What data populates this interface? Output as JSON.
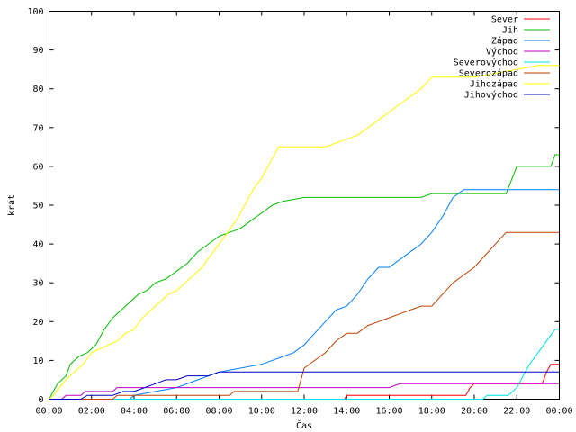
{
  "chart_data": {
    "type": "line",
    "title": "",
    "xlabel": "Čas",
    "ylabel": "krát",
    "xlim": [
      0,
      24
    ],
    "ylim": [
      0,
      100
    ],
    "x_ticks": [
      {
        "value": 0,
        "label": "00:00"
      },
      {
        "value": 2,
        "label": "02:00"
      },
      {
        "value": 4,
        "label": "04:00"
      },
      {
        "value": 6,
        "label": "06:00"
      },
      {
        "value": 8,
        "label": "08:00"
      },
      {
        "value": 10,
        "label": "10:00"
      },
      {
        "value": 12,
        "label": "12:00"
      },
      {
        "value": 14,
        "label": "14:00"
      },
      {
        "value": 16,
        "label": "16:00"
      },
      {
        "value": 18,
        "label": "18:00"
      },
      {
        "value": 20,
        "label": "20:00"
      },
      {
        "value": 22,
        "label": "22:00"
      },
      {
        "value": 24,
        "label": "00:00"
      }
    ],
    "y_ticks": [
      0,
      10,
      20,
      30,
      40,
      50,
      60,
      70,
      80,
      90,
      100
    ],
    "grid": false,
    "legend": "top-right",
    "series": [
      {
        "name": "Sever",
        "color": "#ff0000",
        "x": [
          0,
          13.9,
          14.0,
          19.6,
          19.8,
          20.0,
          23.2,
          23.4,
          23.6,
          24
        ],
        "values": [
          0,
          0,
          1,
          1,
          3,
          4,
          4,
          7,
          9,
          9
        ]
      },
      {
        "name": "Jih",
        "color": "#00c000",
        "x": [
          0,
          0.2,
          0.4,
          0.8,
          1.0,
          1.4,
          1.8,
          2.2,
          2.6,
          3.0,
          3.4,
          3.8,
          4.2,
          4.6,
          5.0,
          5.5,
          6.0,
          6.5,
          7.0,
          7.5,
          8.0,
          8.5,
          9.0,
          9.5,
          10.0,
          10.5,
          11.0,
          12.0,
          14.0,
          16.0,
          17.5,
          18.0,
          19.0,
          20.0,
          21.5,
          22.0,
          23.0,
          23.6,
          23.8,
          24
        ],
        "values": [
          0,
          2,
          4,
          6,
          9,
          11,
          12,
          14,
          18,
          21,
          23,
          25,
          27,
          28,
          30,
          31,
          33,
          35,
          38,
          40,
          42,
          43,
          44,
          46,
          48,
          50,
          51,
          52,
          52,
          52,
          52,
          53,
          53,
          53,
          53,
          60,
          60,
          60,
          63,
          63
        ]
      },
      {
        "name": "Západ",
        "color": "#0080ff",
        "x": [
          0,
          3.8,
          4.0,
          5.0,
          6.0,
          7.0,
          7.5,
          8.0,
          9.0,
          10.0,
          11.0,
          11.5,
          12.0,
          12.5,
          13.0,
          13.5,
          14.0,
          14.5,
          15.0,
          15.5,
          16.0,
          16.5,
          17.0,
          17.5,
          18.0,
          18.5,
          19.0,
          19.5,
          20.0,
          22.0,
          24
        ],
        "values": [
          0,
          0,
          1,
          2,
          3,
          5,
          6,
          7,
          8,
          9,
          11,
          12,
          14,
          17,
          20,
          23,
          24,
          27,
          31,
          34,
          34,
          36,
          38,
          40,
          43,
          47,
          52,
          54,
          54,
          54,
          54
        ]
      },
      {
        "name": "Východ",
        "color": "#c000c0",
        "x": [
          0,
          0.6,
          0.8,
          1.5,
          1.7,
          3.0,
          3.2,
          5.0,
          7.0,
          9.0,
          11.0,
          12.0,
          14.0,
          16.0,
          16.5,
          18.0,
          20.0,
          22.0,
          24
        ],
        "values": [
          0,
          0,
          1,
          1,
          2,
          2,
          3,
          3,
          3,
          3,
          3,
          3,
          3,
          3,
          4,
          4,
          4,
          4,
          4
        ]
      },
      {
        "name": "Severovýchod",
        "color": "#00e0e0",
        "x": [
          0,
          20.4,
          20.6,
          21.4,
          21.6,
          22.0,
          22.3,
          22.6,
          23.0,
          23.4,
          23.8,
          24
        ],
        "values": [
          0,
          0,
          1,
          1,
          1,
          3,
          6,
          9,
          12,
          15,
          18,
          18
        ]
      },
      {
        "name": "Severozápad",
        "color": "#c04000",
        "x": [
          0,
          3.0,
          3.2,
          6.0,
          6.2,
          8.5,
          8.7,
          11.7,
          12.0,
          12.5,
          13.0,
          13.5,
          14.0,
          14.5,
          15.0,
          15.5,
          16.0,
          16.5,
          17.0,
          17.5,
          18.0,
          18.5,
          19.0,
          19.5,
          20.0,
          20.5,
          21.0,
          21.5,
          22.0,
          22.5,
          24
        ],
        "values": [
          0,
          0,
          1,
          1,
          1,
          1,
          2,
          2,
          8,
          10,
          12,
          15,
          17,
          17,
          19,
          20,
          21,
          22,
          23,
          24,
          24,
          27,
          30,
          32,
          34,
          37,
          40,
          43,
          43,
          43,
          43
        ]
      },
      {
        "name": "Jihozápad",
        "color": "#ffff00",
        "x": [
          0,
          0.2,
          0.5,
          0.8,
          1.2,
          1.6,
          2.0,
          2.4,
          2.8,
          3.2,
          3.6,
          4.0,
          4.4,
          4.8,
          5.2,
          5.6,
          6.0,
          6.4,
          6.8,
          7.2,
          7.6,
          8.0,
          8.4,
          8.8,
          9.2,
          9.6,
          10.0,
          10.4,
          10.8,
          11.2,
          11.6,
          12.0,
          13.0,
          13.5,
          14.0,
          14.5,
          15.0,
          15.5,
          16.0,
          16.5,
          17.0,
          17.5,
          18.0,
          19.0,
          20.0,
          21.0,
          22.0,
          23.0,
          24
        ],
        "values": [
          0,
          1,
          3,
          5,
          7,
          9,
          12,
          13,
          14,
          15,
          17,
          18,
          21,
          23,
          25,
          27,
          28,
          30,
          32,
          34,
          37,
          40,
          43,
          46,
          50,
          54,
          57,
          61,
          65,
          65,
          65,
          65,
          65,
          66,
          67,
          68,
          70,
          72,
          74,
          76,
          78,
          80,
          83,
          83,
          83,
          84,
          85,
          86,
          86
        ]
      },
      {
        "name": "Jihovýchod",
        "color": "#0000c0",
        "x": [
          0,
          1.5,
          1.8,
          2.5,
          3.0,
          3.5,
          4.0,
          4.5,
          5.0,
          5.5,
          6.0,
          6.5,
          7.0,
          7.5,
          8.0,
          9.0,
          10.0,
          11.0,
          12.0,
          14.0,
          16.0,
          18.0,
          20.0,
          22.0,
          24
        ],
        "values": [
          0,
          0,
          1,
          1,
          1,
          2,
          2,
          3,
          4,
          5,
          5,
          6,
          6,
          6,
          7,
          7,
          7,
          7,
          7,
          7,
          7,
          7,
          7,
          7,
          7
        ]
      }
    ]
  }
}
